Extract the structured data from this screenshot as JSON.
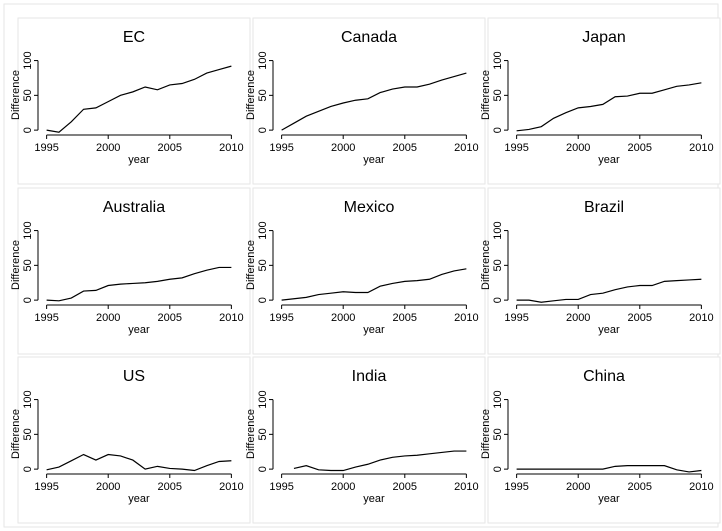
{
  "chart_data": [
    {
      "type": "line",
      "title": "EC",
      "ylabel": "Difference",
      "xlabel": "year",
      "color": "#000000",
      "x": [
        1995,
        1996,
        1997,
        1998,
        1999,
        2000,
        2001,
        2002,
        2003,
        2004,
        2005,
        2006,
        2007,
        2008,
        2009,
        2010
      ],
      "values": [
        0,
        -3,
        12,
        30,
        32,
        41,
        50,
        55,
        62,
        58,
        65,
        67,
        73,
        82,
        87,
        92
      ],
      "xlim": [
        1994.3,
        2010.7
      ],
      "ylim": [
        -7,
        108
      ],
      "xticks": [
        1995,
        2000,
        2005,
        2010
      ],
      "yticks": [
        0,
        50,
        100
      ]
    },
    {
      "type": "line",
      "title": "Canada",
      "ylabel": "Difference",
      "xlabel": "year",
      "color": "#000000",
      "x": [
        1995,
        1996,
        1997,
        1998,
        1999,
        2000,
        2001,
        2002,
        2003,
        2004,
        2005,
        2006,
        2007,
        2008,
        2009,
        2010
      ],
      "values": [
        0,
        10,
        20,
        27,
        34,
        39,
        43,
        45,
        54,
        59,
        62,
        62,
        66,
        72,
        77,
        82
      ],
      "xlim": [
        1994.3,
        2010.7
      ],
      "ylim": [
        -7,
        108
      ],
      "xticks": [
        1995,
        2000,
        2005,
        2010
      ],
      "yticks": [
        0,
        50,
        100
      ]
    },
    {
      "type": "line",
      "title": "Japan",
      "ylabel": "Difference",
      "xlabel": "year",
      "color": "#000000",
      "x": [
        1995,
        1996,
        1997,
        1998,
        1999,
        2000,
        2001,
        2002,
        2003,
        2004,
        2005,
        2006,
        2007,
        2008,
        2009,
        2010
      ],
      "values": [
        -1,
        1,
        5,
        17,
        25,
        32,
        34,
        37,
        48,
        49,
        53,
        53,
        58,
        63,
        65,
        68
      ],
      "xlim": [
        1994.3,
        2010.7
      ],
      "ylim": [
        -7,
        108
      ],
      "xticks": [
        1995,
        2000,
        2005,
        2010
      ],
      "yticks": [
        0,
        50,
        100
      ]
    },
    {
      "type": "line",
      "title": "Australia",
      "ylabel": "Difference",
      "xlabel": "year",
      "color": "#000000",
      "x": [
        1995,
        1996,
        1997,
        1998,
        1999,
        2000,
        2001,
        2002,
        2003,
        2004,
        2005,
        2006,
        2007,
        2008,
        2009,
        2010
      ],
      "values": [
        0,
        -1,
        3,
        13,
        14,
        21,
        23,
        24,
        25,
        27,
        30,
        32,
        38,
        43,
        47,
        47
      ],
      "xlim": [
        1994.3,
        2010.7
      ],
      "ylim": [
        -7,
        108
      ],
      "xticks": [
        1995,
        2000,
        2005,
        2010
      ],
      "yticks": [
        0,
        50,
        100
      ]
    },
    {
      "type": "line",
      "title": "Mexico",
      "ylabel": "Difference",
      "xlabel": "year",
      "color": "#000000",
      "x": [
        1995,
        1996,
        1997,
        1998,
        1999,
        2000,
        2001,
        2002,
        2003,
        2004,
        2005,
        2006,
        2007,
        2008,
        2009,
        2010
      ],
      "values": [
        0,
        2,
        4,
        8,
        10,
        12,
        11,
        11,
        20,
        24,
        27,
        28,
        30,
        37,
        42,
        45
      ],
      "xlim": [
        1994.3,
        2010.7
      ],
      "ylim": [
        -7,
        108
      ],
      "xticks": [
        1995,
        2000,
        2005,
        2010
      ],
      "yticks": [
        0,
        50,
        100
      ]
    },
    {
      "type": "line",
      "title": "Brazil",
      "ylabel": "Difference",
      "xlabel": "year",
      "color": "#000000",
      "x": [
        1995,
        1996,
        1997,
        1998,
        1999,
        2000,
        2001,
        2002,
        2003,
        2004,
        2005,
        2006,
        2007,
        2008,
        2009,
        2010
      ],
      "values": [
        0,
        0,
        -3,
        -1,
        1,
        1,
        8,
        10,
        15,
        19,
        21,
        21,
        27,
        28,
        29,
        30
      ],
      "xlim": [
        1994.3,
        2010.7
      ],
      "ylim": [
        -7,
        108
      ],
      "xticks": [
        1995,
        2000,
        2005,
        2010
      ],
      "yticks": [
        0,
        50,
        100
      ]
    },
    {
      "type": "line",
      "title": "US",
      "ylabel": "Difference",
      "xlabel": "year",
      "color": "#000000",
      "x": [
        1995,
        1996,
        1997,
        1998,
        1999,
        2000,
        2001,
        2002,
        2003,
        2004,
        2005,
        2006,
        2007,
        2008,
        2009,
        2010
      ],
      "values": [
        -1,
        3,
        12,
        21,
        13,
        21,
        19,
        13,
        0,
        4,
        1,
        0,
        -2,
        5,
        11,
        12
      ],
      "xlim": [
        1994.3,
        2010.7
      ],
      "ylim": [
        -7,
        108
      ],
      "xticks": [
        1995,
        2000,
        2005,
        2010
      ],
      "yticks": [
        0,
        50,
        100
      ]
    },
    {
      "type": "line",
      "title": "India",
      "ylabel": "Difference",
      "xlabel": "year",
      "color": "#000000",
      "x": [
        1995,
        1996,
        1997,
        1998,
        1999,
        2000,
        2001,
        2002,
        2003,
        2004,
        2005,
        2006,
        2007,
        2008,
        2009,
        2010
      ],
      "values": [
        null,
        1,
        5,
        -1,
        -2,
        -2,
        3,
        7,
        13,
        17,
        19,
        20,
        22,
        24,
        26,
        26
      ],
      "xlim": [
        1994.3,
        2010.7
      ],
      "ylim": [
        -7,
        108
      ],
      "xticks": [
        1995,
        2000,
        2005,
        2010
      ],
      "yticks": [
        0,
        50,
        100
      ]
    },
    {
      "type": "line",
      "title": "China",
      "ylabel": "Difference",
      "xlabel": "year",
      "color": "#000000",
      "x": [
        1995,
        1996,
        1997,
        1998,
        1999,
        2000,
        2001,
        2002,
        2003,
        2004,
        2005,
        2006,
        2007,
        2008,
        2009,
        2010
      ],
      "values": [
        0,
        0,
        0,
        0,
        0,
        0,
        0,
        0,
        4,
        5,
        5,
        5,
        5,
        -1,
        -4,
        -2
      ],
      "xlim": [
        1994.3,
        2010.7
      ],
      "ylim": [
        -7,
        108
      ],
      "xticks": [
        1995,
        2000,
        2005,
        2010
      ],
      "yticks": [
        0,
        50,
        100
      ]
    }
  ]
}
